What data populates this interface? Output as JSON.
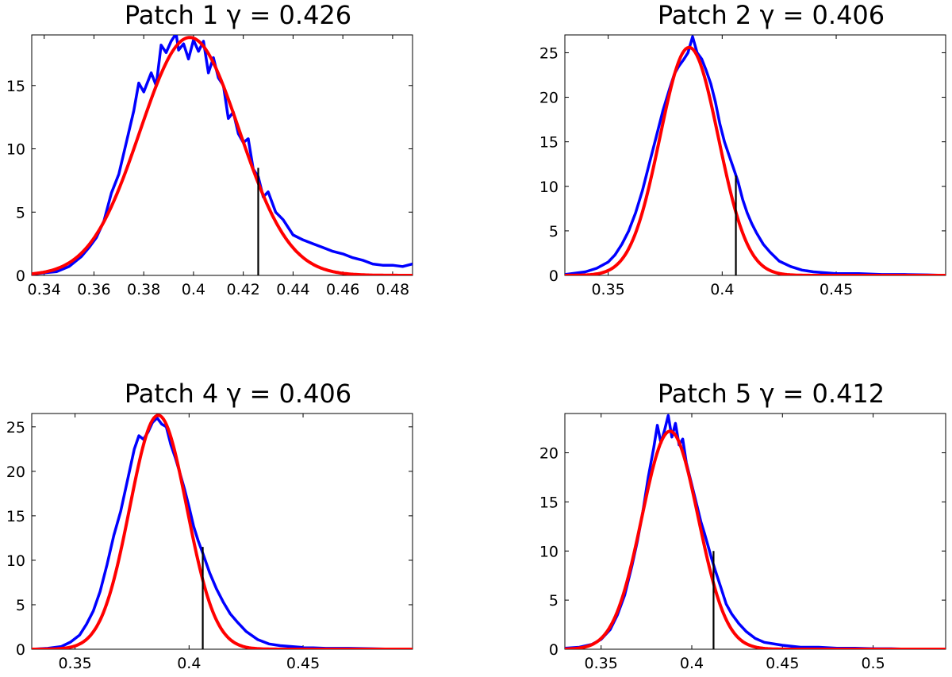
{
  "figure_title": "",
  "chart_data": [
    {
      "type": "line",
      "title": "Patch 1   γ =  0.426",
      "xlim": [
        0.335,
        0.488
      ],
      "ylim": [
        0,
        19
      ],
      "xticks": [
        0.34,
        0.36,
        0.38,
        0.4,
        0.42,
        0.44,
        0.46,
        0.48
      ],
      "xtick_labels": [
        "0.34",
        "0.36",
        "0.38",
        "0.4",
        "0.42",
        "0.44",
        "0.46",
        "0.48"
      ],
      "yticks": [
        0,
        5,
        10,
        15
      ],
      "ytick_labels": [
        "0",
        "5",
        "10",
        "15"
      ],
      "gamma_value": 0.426,
      "gamma_marker_height": 8.5,
      "series": [
        {
          "name": "histogram",
          "color": "#0000ff",
          "x": [
            0.335,
            0.34,
            0.345,
            0.35,
            0.355,
            0.358,
            0.361,
            0.364,
            0.367,
            0.37,
            0.373,
            0.376,
            0.378,
            0.38,
            0.383,
            0.385,
            0.387,
            0.389,
            0.391,
            0.393,
            0.394,
            0.396,
            0.398,
            0.4,
            0.402,
            0.404,
            0.406,
            0.408,
            0.41,
            0.412,
            0.414,
            0.416,
            0.418,
            0.42,
            0.422,
            0.424,
            0.426,
            0.428,
            0.43,
            0.433,
            0.436,
            0.44,
            0.444,
            0.448,
            0.452,
            0.456,
            0.46,
            0.464,
            0.468,
            0.472,
            0.476,
            0.48,
            0.484,
            0.488
          ],
          "y": [
            0.1,
            0.2,
            0.3,
            0.7,
            1.5,
            2.2,
            3.0,
            4.3,
            6.5,
            8.0,
            10.5,
            13.0,
            15.2,
            14.5,
            16.0,
            15.0,
            18.2,
            17.6,
            18.5,
            19.1,
            17.8,
            18.3,
            17.1,
            18.6,
            17.7,
            18.5,
            16.0,
            17.2,
            15.6,
            15.0,
            12.4,
            12.9,
            11.2,
            10.5,
            10.8,
            8.4,
            7.8,
            6.2,
            6.6,
            5.0,
            4.4,
            3.2,
            2.8,
            2.5,
            2.2,
            1.9,
            1.7,
            1.4,
            1.2,
            0.9,
            0.8,
            0.8,
            0.7,
            0.9
          ]
        },
        {
          "name": "gaussian fit",
          "color": "#ff0000",
          "mean": 0.3985,
          "sigma": 0.02,
          "peak": 18.8
        }
      ]
    },
    {
      "type": "line",
      "title": "Patch 2   γ =  0.406",
      "xlim": [
        0.331,
        0.498
      ],
      "ylim": [
        0,
        27
      ],
      "xticks": [
        0.35,
        0.4,
        0.45
      ],
      "xtick_labels": [
        "0.35",
        "0.4",
        "0.45"
      ],
      "yticks": [
        0,
        5,
        10,
        15,
        20,
        25
      ],
      "ytick_labels": [
        "0",
        "5",
        "10",
        "15",
        "20",
        "25"
      ],
      "gamma_value": 0.406,
      "gamma_marker_height": 11.2,
      "series": [
        {
          "name": "histogram",
          "color": "#0000ff",
          "x": [
            0.331,
            0.34,
            0.345,
            0.35,
            0.353,
            0.356,
            0.359,
            0.362,
            0.365,
            0.368,
            0.371,
            0.374,
            0.377,
            0.379,
            0.381,
            0.383,
            0.385,
            0.387,
            0.389,
            0.391,
            0.393,
            0.395,
            0.397,
            0.399,
            0.401,
            0.403,
            0.405,
            0.407,
            0.409,
            0.411,
            0.413,
            0.415,
            0.418,
            0.421,
            0.425,
            0.43,
            0.435,
            0.44,
            0.45,
            0.46,
            0.47,
            0.48,
            0.49,
            0.498
          ],
          "y": [
            0.1,
            0.4,
            0.8,
            1.5,
            2.3,
            3.5,
            5.0,
            7.0,
            9.5,
            12.5,
            15.5,
            18.5,
            21.0,
            22.6,
            23.5,
            24.2,
            25.0,
            26.8,
            25.0,
            24.3,
            23.0,
            21.5,
            19.5,
            17.0,
            15.0,
            13.5,
            12.0,
            10.5,
            8.5,
            7.0,
            5.8,
            4.8,
            3.5,
            2.6,
            1.6,
            1.0,
            0.6,
            0.4,
            0.2,
            0.2,
            0.1,
            0.1,
            0.05,
            0.0
          ]
        },
        {
          "name": "gaussian fit",
          "color": "#ff0000",
          "mean": 0.3855,
          "sigma": 0.0128,
          "peak": 25.6
        }
      ]
    },
    {
      "type": "line",
      "title": "Patch 4   γ =  0.406",
      "xlim": [
        0.331,
        0.498
      ],
      "ylim": [
        0,
        26.5
      ],
      "xticks": [
        0.35,
        0.4,
        0.45
      ],
      "xtick_labels": [
        "0.35",
        "0.4",
        "0.45"
      ],
      "yticks": [
        0,
        5,
        10,
        15,
        20,
        25
      ],
      "ytick_labels": [
        "0",
        "5",
        "10",
        "15",
        "20",
        "25"
      ],
      "gamma_value": 0.406,
      "gamma_marker_height": 11.5,
      "series": [
        {
          "name": "histogram",
          "color": "#0000ff",
          "x": [
            0.331,
            0.338,
            0.344,
            0.348,
            0.352,
            0.355,
            0.358,
            0.361,
            0.364,
            0.367,
            0.37,
            0.373,
            0.376,
            0.378,
            0.38,
            0.382,
            0.384,
            0.386,
            0.388,
            0.39,
            0.392,
            0.394,
            0.396,
            0.398,
            0.4,
            0.402,
            0.404,
            0.406,
            0.409,
            0.412,
            0.415,
            0.418,
            0.421,
            0.425,
            0.43,
            0.435,
            0.44,
            0.45,
            0.46,
            0.47,
            0.48,
            0.49,
            0.498
          ],
          "y": [
            0.0,
            0.1,
            0.3,
            0.8,
            1.6,
            2.8,
            4.3,
            6.5,
            9.5,
            12.8,
            15.5,
            19.0,
            22.5,
            24.0,
            23.6,
            24.4,
            25.5,
            26.0,
            25.3,
            25.0,
            23.0,
            21.5,
            19.8,
            18.0,
            16.0,
            13.8,
            12.2,
            10.8,
            8.6,
            6.8,
            5.3,
            4.0,
            3.1,
            2.0,
            1.1,
            0.6,
            0.4,
            0.2,
            0.1,
            0.1,
            0.05,
            0.0,
            0.0
          ]
        },
        {
          "name": "gaussian fit",
          "color": "#ff0000",
          "mean": 0.3865,
          "sigma": 0.0125,
          "peak": 26.3
        }
      ]
    },
    {
      "type": "line",
      "title": "Patch 5   γ =  0.412",
      "xlim": [
        0.33,
        0.54
      ],
      "ylim": [
        0,
        24
      ],
      "xticks": [
        0.35,
        0.4,
        0.45,
        0.5
      ],
      "xtick_labels": [
        "0.35",
        "0.4",
        "0.45",
        "0.5"
      ],
      "yticks": [
        0,
        5,
        10,
        15,
        20
      ],
      "ytick_labels": [
        "0",
        "5",
        "10",
        "15",
        "20"
      ],
      "gamma_value": 0.412,
      "gamma_marker_height": 10.0,
      "series": [
        {
          "name": "histogram",
          "color": "#0000ff",
          "x": [
            0.33,
            0.338,
            0.345,
            0.35,
            0.355,
            0.359,
            0.363,
            0.367,
            0.37,
            0.373,
            0.376,
            0.379,
            0.381,
            0.383,
            0.385,
            0.387,
            0.389,
            0.391,
            0.393,
            0.395,
            0.397,
            0.399,
            0.401,
            0.403,
            0.405,
            0.407,
            0.409,
            0.411,
            0.413,
            0.416,
            0.419,
            0.422,
            0.426,
            0.43,
            0.435,
            0.44,
            0.45,
            0.46,
            0.47,
            0.48,
            0.49,
            0.5,
            0.51,
            0.52,
            0.53,
            0.54
          ],
          "y": [
            0.1,
            0.2,
            0.5,
            1.0,
            2.0,
            3.5,
            5.5,
            8.5,
            11.0,
            14.0,
            17.5,
            20.5,
            22.8,
            21.0,
            22.3,
            23.8,
            21.6,
            23.0,
            20.8,
            21.4,
            19.0,
            17.5,
            16.0,
            14.5,
            13.0,
            11.8,
            10.5,
            9.2,
            8.0,
            6.3,
            4.6,
            3.6,
            2.6,
            1.8,
            1.1,
            0.7,
            0.4,
            0.2,
            0.2,
            0.1,
            0.1,
            0.05,
            0.05,
            0.0,
            0.0,
            0.0
          ]
        },
        {
          "name": "gaussian fit",
          "color": "#ff0000",
          "mean": 0.388,
          "sigma": 0.0155,
          "peak": 22.2
        }
      ]
    }
  ]
}
